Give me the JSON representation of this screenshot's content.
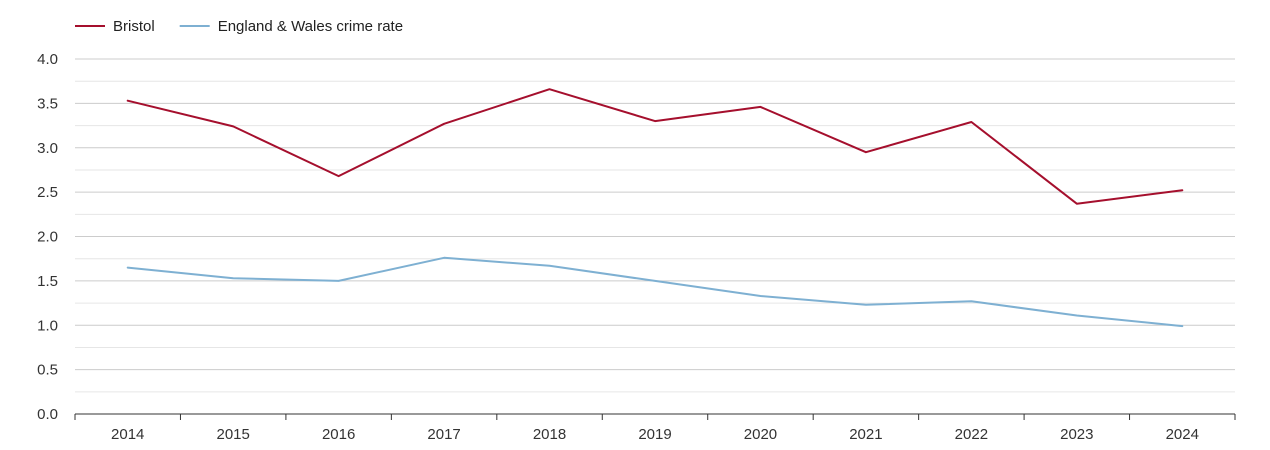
{
  "chart_data": {
    "type": "line",
    "title": "",
    "xlabel": "",
    "ylabel": "",
    "x": [
      "2014",
      "2015",
      "2016",
      "2017",
      "2018",
      "2019",
      "2020",
      "2021",
      "2022",
      "2023",
      "2024"
    ],
    "ylim": [
      0,
      4
    ],
    "yticks": [
      "0.0",
      "0.5",
      "1.0",
      "1.5",
      "2.0",
      "2.5",
      "3.0",
      "3.5",
      "4.0"
    ],
    "grid": true,
    "legend_position": "top-left",
    "series": [
      {
        "name": "Bristol",
        "color": "#a50f2d",
        "values": [
          3.53,
          3.24,
          2.68,
          3.27,
          3.66,
          3.3,
          3.46,
          2.95,
          3.29,
          2.37,
          2.52
        ]
      },
      {
        "name": "England & Wales crime rate",
        "color": "#7eb0d2",
        "values": [
          1.65,
          1.53,
          1.5,
          1.76,
          1.67,
          1.5,
          1.33,
          1.23,
          1.27,
          1.11,
          0.99
        ]
      }
    ]
  }
}
